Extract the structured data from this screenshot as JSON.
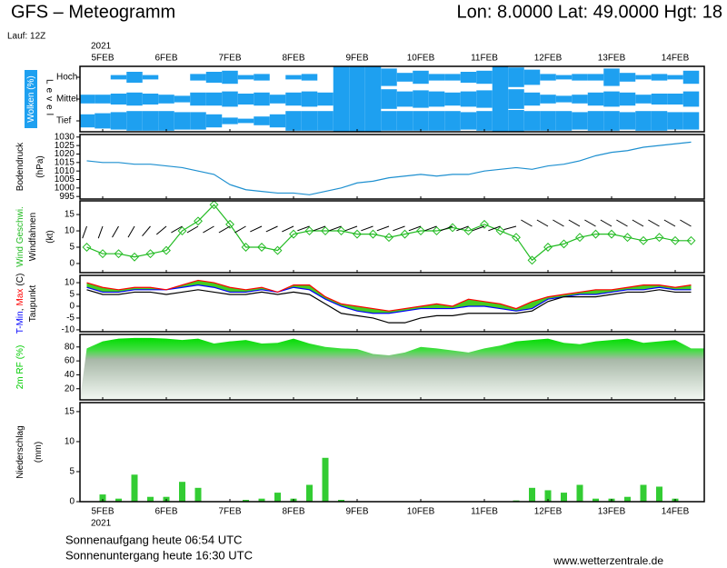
{
  "header": {
    "title": "GFS – Meteogramm",
    "location": "Lon: 8.0000 Lat: 49.0000 Hgt: 18",
    "run": "Lauf: 12Z"
  },
  "time_axis": {
    "year": "2021",
    "categories": [
      null,
      "5FEB",
      null,
      null,
      null,
      "6FEB",
      null,
      null,
      null,
      "7FEB",
      null,
      null,
      null,
      "8FEB",
      null,
      null,
      null,
      "9FEB",
      null,
      null,
      null,
      "10FEB",
      null,
      null,
      null,
      "11FEB",
      null,
      null,
      null,
      "12FEB",
      null,
      null,
      null,
      "13FEB",
      null,
      null,
      null,
      "14FEB",
      null
    ]
  },
  "chart_data": [
    {
      "type": "cloud",
      "ylabel": "Wolken (%)",
      "level_label": "Level",
      "color": "#1ea0f0",
      "series": [
        {
          "name": "Hoch",
          "values": [
            0,
            0,
            20,
            50,
            20,
            0,
            0,
            30,
            50,
            60,
            20,
            30,
            0,
            20,
            30,
            0,
            100,
            100,
            100,
            80,
            40,
            60,
            30,
            30,
            50,
            60,
            100,
            90,
            70,
            30,
            20,
            30,
            30,
            80,
            40,
            20,
            30,
            20,
            60
          ]
        },
        {
          "name": "Mittel",
          "values": [
            40,
            40,
            50,
            60,
            50,
            40,
            30,
            60,
            60,
            70,
            50,
            60,
            40,
            60,
            70,
            60,
            100,
            100,
            100,
            90,
            70,
            80,
            70,
            60,
            70,
            80,
            100,
            90,
            60,
            40,
            30,
            40,
            60,
            70,
            60,
            40,
            50,
            50,
            70
          ]
        },
        {
          "name": "Tief",
          "values": [
            60,
            70,
            80,
            90,
            90,
            90,
            80,
            80,
            60,
            30,
            20,
            40,
            60,
            90,
            90,
            90,
            100,
            100,
            100,
            90,
            90,
            90,
            90,
            90,
            80,
            90,
            100,
            100,
            90,
            90,
            90,
            80,
            90,
            90,
            80,
            90,
            90,
            80,
            80
          ]
        }
      ]
    },
    {
      "type": "line",
      "ylabel": "Bodendruck",
      "unit": "(hPa)",
      "ylim": [
        993.5,
        1031.5
      ],
      "yticks": [
        995,
        1000,
        1005,
        1010,
        1015,
        1020,
        1025,
        1030
      ],
      "series": [
        {
          "color": "#1e90d0",
          "values": [
            1016,
            1015,
            1015,
            1014,
            1014,
            1013,
            1012,
            1010,
            1008,
            1002,
            999,
            998,
            997,
            997,
            996,
            998,
            1000,
            1003,
            1004,
            1006,
            1007,
            1008,
            1007,
            1008,
            1008,
            1010,
            1011,
            1012,
            1011,
            1013,
            1014,
            1016,
            1019,
            1021,
            1022,
            1024,
            1025,
            1026,
            1027
          ]
        }
      ]
    },
    {
      "type": "wind",
      "unit": "(kt)",
      "ylim": [
        -2.8,
        19.2
      ],
      "yticks": [
        0,
        5,
        10,
        15
      ],
      "series": [
        {
          "name": "Wind Geschwi.",
          "color": "#22bb22",
          "values": [
            5,
            3,
            3,
            2,
            3,
            4,
            10,
            13,
            18,
            12,
            5,
            5,
            4,
            9,
            10,
            10,
            10,
            9,
            9,
            8,
            9,
            10,
            10,
            11,
            10,
            12,
            10,
            8,
            1,
            5,
            6,
            8,
            9,
            9,
            8,
            7,
            8,
            7,
            7
          ]
        },
        {
          "name": "Windfahnen",
          "color": "#000000",
          "values": [
            200,
            200,
            210,
            210,
            220,
            230,
            240,
            240,
            240,
            240,
            240,
            245,
            245,
            245,
            250,
            250,
            250,
            250,
            250,
            250,
            250,
            250,
            250,
            250,
            250,
            250,
            250,
            255,
            300,
            300,
            300,
            300,
            300,
            300,
            300,
            300,
            300,
            300,
            300
          ]
        }
      ]
    },
    {
      "type": "temperature",
      "sep": ",",
      "unit": "(C)",
      "fill": "#44cc22",
      "ylim": [
        -10.8,
        13.1
      ],
      "yticks": [
        -10,
        -5,
        0,
        5,
        10
      ],
      "series": [
        {
          "name": "T-Min",
          "color": "#0000ff",
          "values": [
            8,
            6,
            6,
            7,
            7,
            7,
            8,
            9,
            8,
            6,
            6,
            7,
            6,
            8,
            7,
            3,
            0,
            -2,
            -3,
            -3,
            -2,
            -1,
            -1,
            -1,
            0,
            0,
            -1,
            -2,
            -1,
            3,
            4,
            5,
            5,
            6,
            7,
            7,
            8,
            7,
            7
          ]
        },
        {
          "name": "Max",
          "color": "#ff0000",
          "values": [
            10,
            8,
            7,
            8,
            8,
            7,
            9,
            11,
            10,
            8,
            7,
            8,
            6,
            9,
            9,
            4,
            1,
            0,
            -1,
            -2,
            -1,
            0,
            1,
            0,
            3,
            2,
            1,
            -1,
            2,
            4,
            5,
            6,
            7,
            7,
            8,
            9,
            9,
            8,
            9
          ]
        },
        {
          "name": "Taupunkt",
          "color": "#000000",
          "values": [
            7,
            5,
            5,
            6,
            6,
            5,
            6,
            7,
            6,
            5,
            5,
            6,
            5,
            6,
            5,
            1,
            -3,
            -4,
            -5,
            -7,
            -7,
            -5,
            -4,
            -4,
            -3,
            -3,
            -3,
            -3,
            -2,
            2,
            4,
            4,
            4,
            5,
            6,
            6,
            7,
            6,
            6
          ]
        }
      ]
    },
    {
      "type": "area",
      "unit": "(%)",
      "ylim": [
        4,
        98
      ],
      "yticks": [
        20,
        40,
        60,
        80
      ],
      "series": [
        {
          "name": "2m RF",
          "color": "#00cc00",
          "values": [
            78,
            88,
            92,
            93,
            93,
            92,
            90,
            92,
            85,
            88,
            90,
            85,
            86,
            92,
            85,
            80,
            78,
            77,
            70,
            68,
            72,
            80,
            78,
            75,
            72,
            78,
            82,
            88,
            90,
            92,
            86,
            84,
            88,
            90,
            92,
            86,
            88,
            90,
            78
          ]
        }
      ]
    },
    {
      "type": "bar",
      "ylabel": "Niederschlag",
      "unit": "(mm)",
      "ylim": [
        0,
        16.5
      ],
      "yticks": [
        0,
        5,
        10,
        15
      ],
      "series": [
        {
          "color": "#33cc33",
          "values": [
            0,
            1.2,
            0.5,
            4.5,
            0.8,
            0.8,
            3.3,
            2.3,
            0,
            0,
            0.3,
            0.5,
            1.5,
            0.5,
            2.8,
            7.3,
            0.3,
            0,
            0,
            0,
            0,
            0,
            0,
            0,
            0,
            0,
            0,
            0.2,
            2.3,
            1.9,
            1.5,
            2.8,
            0.5,
            0.5,
            0.8,
            2.8,
            2.5,
            0.5,
            0
          ]
        }
      ]
    }
  ],
  "footer": {
    "sunrise": "Sonnenaufgang heute 06:54 UTC",
    "sunset": "Sonnenuntergang heute 16:30 UTC",
    "site": "www.wetterzentrale.de"
  }
}
